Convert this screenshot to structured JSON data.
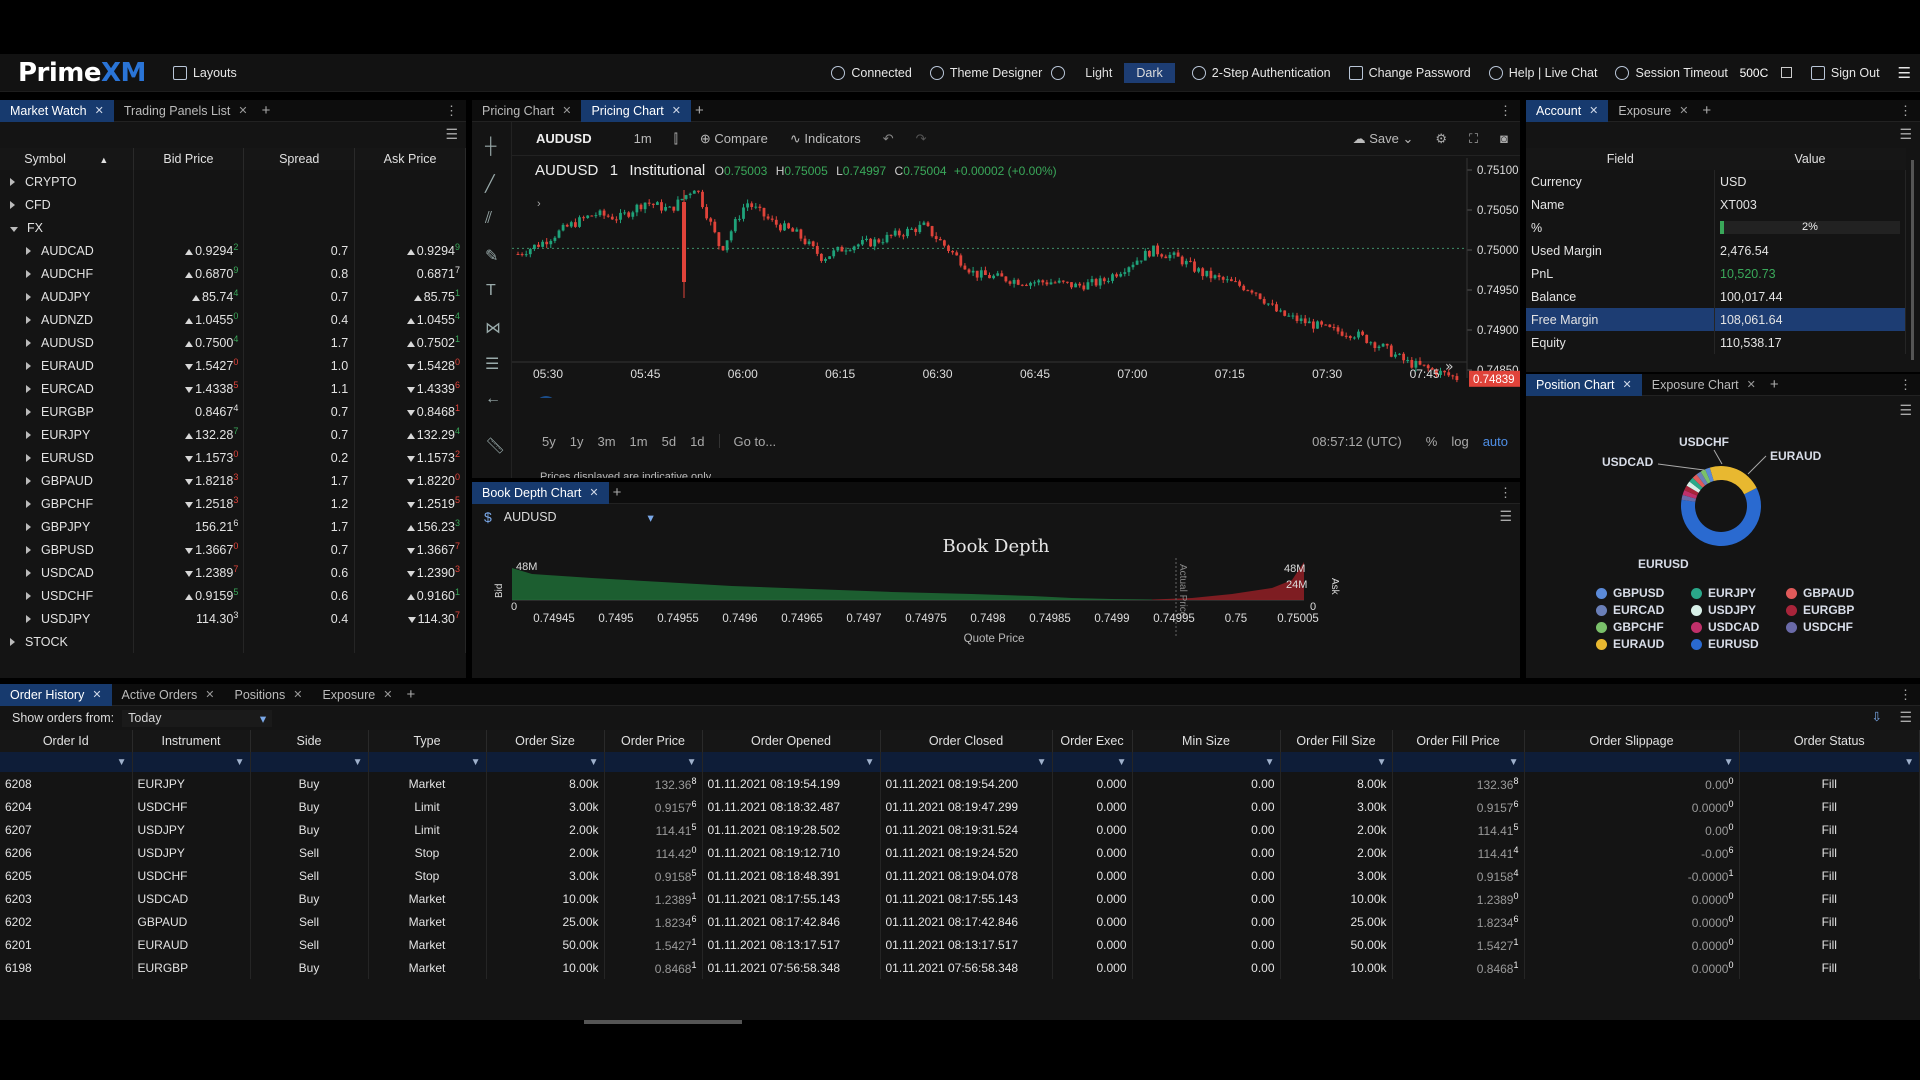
{
  "app": {
    "logo_a": "Prime",
    "logo_b": "XM",
    "layouts": "Layouts"
  },
  "nav": {
    "connected": "Connected",
    "theme_designer": "Theme Designer",
    "light": "Light",
    "dark": "Dark",
    "two_step": "2-Step Authentication",
    "change_password": "Change Password",
    "help": "Help | Live Chat",
    "session_timeout": "Session Timeout",
    "session_value": "500C",
    "sign_out": "Sign Out"
  },
  "market_watch": {
    "tabs": [
      "Market Watch",
      "Trading Panels List"
    ],
    "headers": [
      "Symbol",
      "Bid Price",
      "Spread",
      "Ask Price"
    ],
    "groups_top": [
      "CRYPTO",
      "CFD",
      "FX"
    ],
    "group_bottom": "STOCK",
    "rows": [
      {
        "sym": "AUDCAD",
        "bdir": "up",
        "bid": "0.9294",
        "bsup": "2",
        "spread": "0.7",
        "adir": "up",
        "ask": "0.9294",
        "asup": "9"
      },
      {
        "sym": "AUDCHF",
        "bdir": "up",
        "bid": "0.6870",
        "bsup": "9",
        "spread": "0.8",
        "adir": "",
        "ask": "0.6871",
        "asup": "7"
      },
      {
        "sym": "AUDJPY",
        "bdir": "up",
        "bid": "85.74",
        "bsup": "4",
        "spread": "0.7",
        "adir": "up",
        "ask": "85.75",
        "asup": "1"
      },
      {
        "sym": "AUDNZD",
        "bdir": "up",
        "bid": "1.0455",
        "bsup": "0",
        "spread": "0.4",
        "adir": "up",
        "ask": "1.0455",
        "asup": "4"
      },
      {
        "sym": "AUDUSD",
        "bdir": "up",
        "bid": "0.7500",
        "bsup": "4",
        "spread": "1.7",
        "adir": "up",
        "ask": "0.7502",
        "asup": "1"
      },
      {
        "sym": "EURAUD",
        "bdir": "dn",
        "bid": "1.5427",
        "bsup": "0",
        "spread": "1.0",
        "adir": "dn",
        "ask": "1.5428",
        "asup": "0"
      },
      {
        "sym": "EURCAD",
        "bdir": "dn",
        "bid": "1.4338",
        "bsup": "5",
        "spread": "1.1",
        "adir": "dn",
        "ask": "1.4339",
        "asup": "6"
      },
      {
        "sym": "EURGBP",
        "bdir": "",
        "bid": "0.8467",
        "bsup": "4",
        "spread": "0.7",
        "adir": "dn",
        "ask": "0.8468",
        "asup": "1"
      },
      {
        "sym": "EURJPY",
        "bdir": "up",
        "bid": "132.28",
        "bsup": "7",
        "spread": "0.7",
        "adir": "up",
        "ask": "132.29",
        "asup": "4"
      },
      {
        "sym": "EURUSD",
        "bdir": "dn",
        "bid": "1.1573",
        "bsup": "0",
        "spread": "0.2",
        "adir": "dn",
        "ask": "1.1573",
        "asup": "2"
      },
      {
        "sym": "GBPAUD",
        "bdir": "dn",
        "bid": "1.8218",
        "bsup": "3",
        "spread": "1.7",
        "adir": "dn",
        "ask": "1.8220",
        "asup": "0"
      },
      {
        "sym": "GBPCHF",
        "bdir": "dn",
        "bid": "1.2518",
        "bsup": "3",
        "spread": "1.2",
        "adir": "dn",
        "ask": "1.2519",
        "asup": "5"
      },
      {
        "sym": "GBPJPY",
        "bdir": "",
        "bid": "156.21",
        "bsup": "6",
        "spread": "1.7",
        "adir": "up",
        "ask": "156.23",
        "asup": "3"
      },
      {
        "sym": "GBPUSD",
        "bdir": "dn",
        "bid": "1.3667",
        "bsup": "0",
        "spread": "0.7",
        "adir": "dn",
        "ask": "1.3667",
        "asup": "7"
      },
      {
        "sym": "USDCAD",
        "bdir": "dn",
        "bid": "1.2389",
        "bsup": "7",
        "spread": "0.6",
        "adir": "dn",
        "ask": "1.2390",
        "asup": "3"
      },
      {
        "sym": "USDCHF",
        "bdir": "up",
        "bid": "0.9159",
        "bsup": "5",
        "spread": "0.6",
        "adir": "up",
        "ask": "0.9160",
        "asup": "1"
      },
      {
        "sym": "USDJPY",
        "bdir": "",
        "bid": "114.30",
        "bsup": "3",
        "spread": "0.4",
        "adir": "dn",
        "ask": "114.30",
        "asup": "7"
      }
    ]
  },
  "pricing": {
    "tabs": [
      "Pricing Chart",
      "Pricing Chart"
    ],
    "symbol": "AUDUSD",
    "interval": "1m",
    "compare": "Compare",
    "indicators": "Indicators",
    "save": "Save",
    "legend_sym": "AUDUSD",
    "legend_int": "1",
    "legend_src": "Institutional",
    "ohlc": {
      "o_label": "O",
      "o": "0.75003",
      "h_label": "H",
      "h": "0.75005",
      "l_label": "L",
      "l": "0.74997",
      "c_label": "C",
      "c": "0.75004",
      "chg": "+0.00002 (+0.00%)"
    },
    "yticks": [
      "0.75100",
      "0.75050",
      "0.75000",
      "0.74950",
      "0.74900",
      "0.74850"
    ],
    "last_price": "0.74839",
    "xticks": [
      "05:30",
      "05:45",
      "06:00",
      "06:15",
      "06:30",
      "06:45",
      "07:00",
      "07:15",
      "07:30",
      "07:45"
    ],
    "ranges": [
      "5y",
      "1y",
      "3m",
      "1m",
      "5d",
      "1d"
    ],
    "goto": "Go to...",
    "time": "08:57:12 (UTC)",
    "pct": "%",
    "log": "log",
    "auto": "auto",
    "note": "Prices displayed are indicative only"
  },
  "book": {
    "tab": "Book Depth Chart",
    "symbol": "AUDUSD",
    "title": "Book Depth",
    "y_left": "48M",
    "y_right_top": "48M",
    "y_right_mid": "24M",
    "bid_label": "Bid",
    "ask_label": "Ask",
    "actual_label": "Actual Price",
    "xticks": [
      "0.74945",
      "0.7495",
      "0.74955",
      "0.7496",
      "0.74965",
      "0.7497",
      "0.74975",
      "0.7498",
      "0.74985",
      "0.7499",
      "0.74995",
      "0.75",
      "0.75005"
    ],
    "xlabel": "Quote Price",
    "zero_l": "0",
    "zero_r": "0"
  },
  "account": {
    "tabs": [
      "Account",
      "Exposure"
    ],
    "headers": [
      "Field",
      "Value"
    ],
    "rows": [
      {
        "f": "Currency",
        "v": "USD"
      },
      {
        "f": "Name",
        "v": "XT003"
      },
      {
        "f": "%",
        "v": "2%"
      },
      {
        "f": "Used Margin",
        "v": "2,476.54"
      },
      {
        "f": "PnL",
        "v": "10,520.73"
      },
      {
        "f": "Balance",
        "v": "100,017.44"
      },
      {
        "f": "Free Margin",
        "v": "108,061.64"
      },
      {
        "f": "Equity",
        "v": "110,538.17"
      }
    ],
    "pct_fill": 0.02
  },
  "position": {
    "tabs": [
      "Position Chart",
      "Exposure Chart"
    ],
    "labels": {
      "usdchf": "USDCHF",
      "usdcad": "USDCAD",
      "euraud": "EURAUD",
      "eurusd": "EURUSD"
    },
    "legend": [
      {
        "name": "GBPUSD",
        "color": "#5b8ad8"
      },
      {
        "name": "EURJPY",
        "color": "#2aa88a"
      },
      {
        "name": "GBPAUD",
        "color": "#e05a5a"
      },
      {
        "name": "EURCAD",
        "color": "#6a7fb8"
      },
      {
        "name": "USDJPY",
        "color": "#d8f0e8"
      },
      {
        "name": "EURGBP",
        "color": "#a8243a"
      },
      {
        "name": "GBPCHF",
        "color": "#7ac06a"
      },
      {
        "name": "USDCAD",
        "color": "#c0306a"
      },
      {
        "name": "USDCHF",
        "color": "#6a6aa8"
      },
      {
        "name": "EURAUD",
        "color": "#e8b830"
      },
      {
        "name": "EURUSD",
        "color": "#2a6ad0"
      }
    ]
  },
  "orders": {
    "tabs": [
      "Order History",
      "Active Orders",
      "Positions",
      "Exposure"
    ],
    "show_label": "Show orders from:",
    "show_value": "Today",
    "headers": [
      "Order Id",
      "Instrument",
      "Side",
      "Type",
      "Order Size",
      "Order Price",
      "Order Opened",
      "Order Closed",
      "Order Exec",
      "Min Size",
      "Order Fill Size",
      "Order Fill Price",
      "Order Slippage",
      "Order Status"
    ],
    "rows": [
      {
        "id": "6208",
        "ins": "EURJPY",
        "side": "Buy",
        "type": "Market",
        "size": "8.00k",
        "price": "132.36",
        "psup": "8",
        "opened": "01.11.2021 08:19:54.199",
        "closed": "01.11.2021 08:19:54.200",
        "exec": "0.000",
        "min": "0.00",
        "fsize": "8.00k",
        "fprice": "132.36",
        "fsup": "8",
        "slip": "0.00",
        "ssup": "0",
        "status": "Fill"
      },
      {
        "id": "6204",
        "ins": "USDCHF",
        "side": "Buy",
        "type": "Limit",
        "size": "3.00k",
        "price": "0.9157",
        "psup": "6",
        "opened": "01.11.2021 08:18:32.487",
        "closed": "01.11.2021 08:19:47.299",
        "exec": "0.000",
        "min": "0.00",
        "fsize": "3.00k",
        "fprice": "0.9157",
        "fsup": "6",
        "slip": "0.0000",
        "ssup": "0",
        "status": "Fill"
      },
      {
        "id": "6207",
        "ins": "USDJPY",
        "side": "Buy",
        "type": "Limit",
        "size": "2.00k",
        "price": "114.41",
        "psup": "5",
        "opened": "01.11.2021 08:19:28.502",
        "closed": "01.11.2021 08:19:31.524",
        "exec": "0.000",
        "min": "0.00",
        "fsize": "2.00k",
        "fprice": "114.41",
        "fsup": "5",
        "slip": "0.00",
        "ssup": "0",
        "status": "Fill"
      },
      {
        "id": "6206",
        "ins": "USDJPY",
        "side": "Sell",
        "type": "Stop",
        "size": "2.00k",
        "price": "114.42",
        "psup": "0",
        "opened": "01.11.2021 08:19:12.710",
        "closed": "01.11.2021 08:19:24.520",
        "exec": "0.000",
        "min": "0.00",
        "fsize": "2.00k",
        "fprice": "114.41",
        "fsup": "4",
        "slip": "-0.00",
        "ssup": "6",
        "status": "Fill"
      },
      {
        "id": "6205",
        "ins": "USDCHF",
        "side": "Sell",
        "type": "Stop",
        "size": "3.00k",
        "price": "0.9158",
        "psup": "5",
        "opened": "01.11.2021 08:18:48.391",
        "closed": "01.11.2021 08:19:04.078",
        "exec": "0.000",
        "min": "0.00",
        "fsize": "3.00k",
        "fprice": "0.9158",
        "fsup": "4",
        "slip": "-0.0000",
        "ssup": "1",
        "status": "Fill"
      },
      {
        "id": "6203",
        "ins": "USDCAD",
        "side": "Buy",
        "type": "Market",
        "size": "10.00k",
        "price": "1.2389",
        "psup": "1",
        "opened": "01.11.2021 08:17:55.143",
        "closed": "01.11.2021 08:17:55.143",
        "exec": "0.000",
        "min": "0.00",
        "fsize": "10.00k",
        "fprice": "1.2389",
        "fsup": "0",
        "slip": "0.0000",
        "ssup": "0",
        "status": "Fill"
      },
      {
        "id": "6202",
        "ins": "GBPAUD",
        "side": "Sell",
        "type": "Market",
        "size": "25.00k",
        "price": "1.8234",
        "psup": "6",
        "opened": "01.11.2021 08:17:42.846",
        "closed": "01.11.2021 08:17:42.846",
        "exec": "0.000",
        "min": "0.00",
        "fsize": "25.00k",
        "fprice": "1.8234",
        "fsup": "6",
        "slip": "0.0000",
        "ssup": "0",
        "status": "Fill"
      },
      {
        "id": "6201",
        "ins": "EURAUD",
        "side": "Sell",
        "type": "Market",
        "size": "50.00k",
        "price": "1.5427",
        "psup": "1",
        "opened": "01.11.2021 08:13:17.517",
        "closed": "01.11.2021 08:13:17.517",
        "exec": "0.000",
        "min": "0.00",
        "fsize": "50.00k",
        "fprice": "1.5427",
        "fsup": "1",
        "slip": "0.0000",
        "ssup": "0",
        "status": "Fill"
      },
      {
        "id": "6198",
        "ins": "EURGBP",
        "side": "Buy",
        "type": "Market",
        "size": "10.00k",
        "price": "0.8468",
        "psup": "1",
        "opened": "01.11.2021 07:56:58.348",
        "closed": "01.11.2021 07:56:58.348",
        "exec": "0.000",
        "min": "0.00",
        "fsize": "10.00k",
        "fprice": "0.8468",
        "fsup": "1",
        "slip": "0.0000",
        "ssup": "0",
        "status": "Fill"
      }
    ]
  }
}
